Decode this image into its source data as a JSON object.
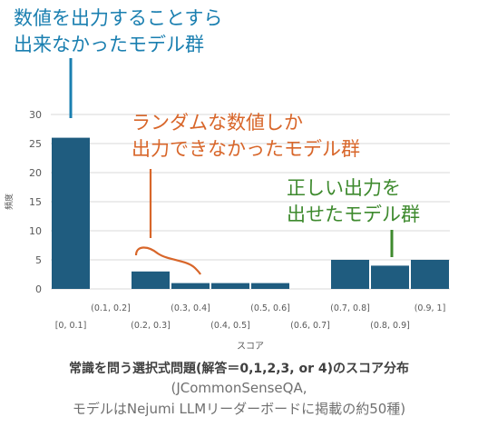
{
  "chart_data": {
    "type": "bar",
    "categories": [
      "[0, 0.1]",
      "(0.1, 0.2]",
      "(0.2, 0.3]",
      "(0.3, 0.4]",
      "(0.4, 0.5]",
      "(0.5, 0.6]",
      "(0.6, 0.7]",
      "(0.7, 0.8]",
      "(0.8, 0.9]",
      "(0.9, 1]"
    ],
    "values": [
      26,
      0,
      3,
      1,
      1,
      1,
      0,
      5,
      4,
      5
    ],
    "xlabel": "スコア",
    "ylabel": "頻度",
    "ylim": [
      0,
      30
    ],
    "yticks": [
      0,
      5,
      10,
      15,
      20,
      25,
      30
    ],
    "grid": true,
    "bar_color": "#1f5c7f"
  },
  "annotations": {
    "blue": {
      "lines": [
        "数値を出力することすら",
        "出来なかったモデル群"
      ],
      "color": "#1a7fb0"
    },
    "orange": {
      "lines": [
        "ランダムな数値しか",
        "出力できなかったモデル群"
      ],
      "color": "#d8662a"
    },
    "green": {
      "lines": [
        "正しい出力を",
        "出せたモデル群"
      ],
      "color": "#3e8a2e"
    }
  },
  "caption": {
    "title": "常識を問う選択式問題(解答＝0,1,2,3, or 4)のスコア分布",
    "source_line1": "(JCommonSenseQA,",
    "source_line2": "モデルはNejumi LLMリーダーボードに掲載の約50種)"
  }
}
